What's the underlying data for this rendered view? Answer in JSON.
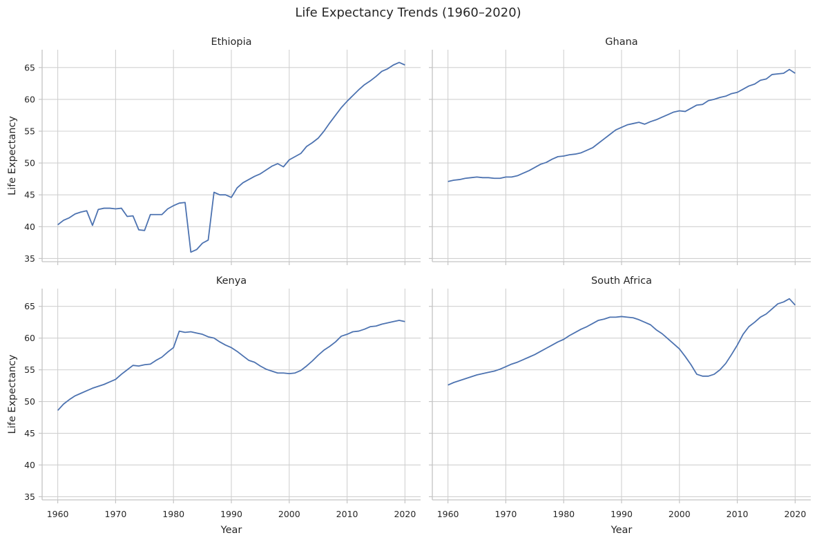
{
  "chart_data": {
    "type": "line",
    "title": "Life Expectancy Trends (1960–2020)",
    "xlabel": "Year",
    "ylabel": "Life Expectancy",
    "xlim": [
      1957.3,
      2022.7
    ],
    "ylim": [
      34.5,
      67.8
    ],
    "xticks": [
      1960,
      1970,
      1980,
      1990,
      2000,
      2010,
      2020
    ],
    "yticks": [
      35,
      40,
      45,
      50,
      55,
      60,
      65
    ],
    "grid": true,
    "x": [
      1960,
      1961,
      1962,
      1963,
      1964,
      1965,
      1966,
      1967,
      1968,
      1969,
      1970,
      1971,
      1972,
      1973,
      1974,
      1975,
      1976,
      1977,
      1978,
      1979,
      1980,
      1981,
      1982,
      1983,
      1984,
      1985,
      1986,
      1987,
      1988,
      1989,
      1990,
      1991,
      1992,
      1993,
      1994,
      1995,
      1996,
      1997,
      1998,
      1999,
      2000,
      2001,
      2002,
      2003,
      2004,
      2005,
      2006,
      2007,
      2008,
      2009,
      2010,
      2011,
      2012,
      2013,
      2014,
      2015,
      2016,
      2017,
      2018,
      2019,
      2020
    ],
    "panels": [
      {
        "name": "Ethiopia",
        "values": [
          40.3,
          41.0,
          41.4,
          42.0,
          42.3,
          42.5,
          40.2,
          42.7,
          42.9,
          42.9,
          42.8,
          42.9,
          41.6,
          41.7,
          39.5,
          39.4,
          41.9,
          41.9,
          41.9,
          42.8,
          43.3,
          43.7,
          43.8,
          36.0,
          36.4,
          37.4,
          37.9,
          45.4,
          45.0,
          45.0,
          44.6,
          46.1,
          46.9,
          47.4,
          47.9,
          48.3,
          48.9,
          49.5,
          49.9,
          49.4,
          50.5,
          51.0,
          51.5,
          52.6,
          53.2,
          53.9,
          55.0,
          56.3,
          57.5,
          58.7,
          59.7,
          60.6,
          61.5,
          62.3,
          62.9,
          63.6,
          64.4,
          64.8,
          65.4,
          65.8,
          65.4
        ]
      },
      {
        "name": "Ghana",
        "values": [
          47.1,
          47.3,
          47.4,
          47.6,
          47.7,
          47.8,
          47.7,
          47.7,
          47.6,
          47.6,
          47.8,
          47.8,
          48.0,
          48.4,
          48.8,
          49.3,
          49.8,
          50.1,
          50.6,
          51.0,
          51.1,
          51.3,
          51.4,
          51.6,
          52.0,
          52.4,
          53.1,
          53.8,
          54.5,
          55.2,
          55.6,
          56.0,
          56.2,
          56.4,
          56.1,
          56.5,
          56.8,
          57.2,
          57.6,
          58.0,
          58.2,
          58.1,
          58.6,
          59.1,
          59.2,
          59.8,
          60.0,
          60.3,
          60.5,
          60.9,
          61.1,
          61.6,
          62.1,
          62.4,
          63.0,
          63.2,
          63.9,
          64.0,
          64.1,
          64.7,
          64.1
        ]
      },
      {
        "name": "Kenya",
        "values": [
          48.6,
          49.6,
          50.3,
          50.9,
          51.3,
          51.7,
          52.1,
          52.4,
          52.7,
          53.1,
          53.5,
          54.3,
          55.0,
          55.7,
          55.6,
          55.8,
          55.9,
          56.5,
          57.0,
          57.8,
          58.5,
          61.1,
          60.9,
          61.0,
          60.8,
          60.6,
          60.2,
          60.0,
          59.4,
          58.9,
          58.5,
          57.9,
          57.2,
          56.5,
          56.2,
          55.6,
          55.1,
          54.8,
          54.5,
          54.5,
          54.4,
          54.5,
          54.9,
          55.6,
          56.4,
          57.3,
          58.1,
          58.7,
          59.4,
          60.3,
          60.6,
          61.0,
          61.1,
          61.4,
          61.8,
          61.9,
          62.2,
          62.4,
          62.6,
          62.8,
          62.6
        ]
      },
      {
        "name": "South Africa",
        "values": [
          52.6,
          53.0,
          53.3,
          53.6,
          53.9,
          54.2,
          54.4,
          54.6,
          54.8,
          55.1,
          55.5,
          55.9,
          56.2,
          56.6,
          57.0,
          57.4,
          57.9,
          58.4,
          58.9,
          59.4,
          59.8,
          60.4,
          60.9,
          61.4,
          61.8,
          62.3,
          62.8,
          63.0,
          63.3,
          63.3,
          63.4,
          63.3,
          63.2,
          62.9,
          62.5,
          62.1,
          61.3,
          60.7,
          59.9,
          59.1,
          58.3,
          57.1,
          55.8,
          54.3,
          54.0,
          54.0,
          54.3,
          55.0,
          56.0,
          57.4,
          58.9,
          60.6,
          61.8,
          62.5,
          63.3,
          63.8,
          64.6,
          65.4,
          65.7,
          66.2,
          65.2
        ]
      }
    ]
  }
}
